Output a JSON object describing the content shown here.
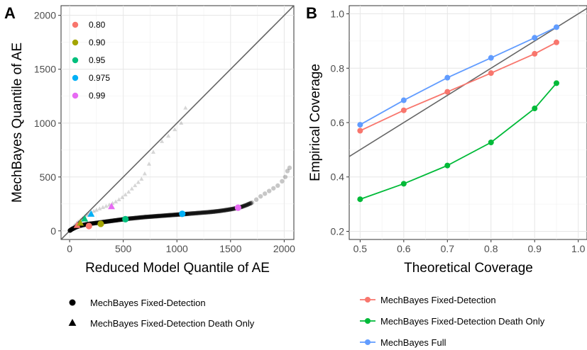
{
  "chart_data": [
    {
      "panel": "A",
      "type": "scatter",
      "xlabel": "Reduced Model Quantile of AE",
      "ylabel": "MechBayes Quantile of AE",
      "xlim": [
        -80,
        2090
      ],
      "ylim": [
        -80,
        2090
      ],
      "xticks": [
        0,
        500,
        1000,
        1500,
        2000
      ],
      "yticks": [
        0,
        500,
        1000,
        1500,
        2000
      ],
      "grid": true,
      "reference_line": "y = x",
      "quantile_legend": {
        "placement": "top-left",
        "items": [
          {
            "label": "0.80",
            "color": "#F8766D"
          },
          {
            "label": "0.90",
            "color": "#A3A500"
          },
          {
            "label": "0.95",
            "color": "#00BF7D"
          },
          {
            "label": "0.975",
            "color": "#00B0F6"
          },
          {
            "label": "0.99",
            "color": "#E76BF3"
          }
        ]
      },
      "series": [
        {
          "name": "MechBayes Fixed-Detection",
          "marker": "circle",
          "points": [
            [
              2,
              2
            ],
            [
              10,
              8
            ],
            [
              20,
              15
            ],
            [
              30,
              20
            ],
            [
              40,
              25
            ],
            [
              55,
              32
            ],
            [
              70,
              38
            ],
            [
              85,
              43
            ],
            [
              100,
              48
            ],
            [
              120,
              53
            ],
            [
              140,
              57
            ],
            [
              160,
              61
            ],
            [
              180,
              64
            ],
            [
              200,
              67
            ],
            [
              230,
              71
            ],
            [
              260,
              75
            ],
            [
              290,
              79
            ],
            [
              320,
              83
            ],
            [
              350,
              87
            ],
            [
              380,
              91
            ],
            [
              410,
              95
            ],
            [
              440,
              99
            ],
            [
              470,
              103
            ],
            [
              500,
              107
            ],
            [
              540,
              112
            ],
            [
              580,
              116
            ],
            [
              620,
              120
            ],
            [
              660,
              124
            ],
            [
              700,
              128
            ],
            [
              740,
              131
            ],
            [
              780,
              134
            ],
            [
              820,
              137
            ],
            [
              860,
              140
            ],
            [
              900,
              143
            ],
            [
              940,
              146
            ],
            [
              980,
              149
            ],
            [
              1020,
              152
            ],
            [
              1060,
              155
            ],
            [
              1100,
              158
            ],
            [
              1150,
              162
            ],
            [
              1200,
              166
            ],
            [
              1250,
              170
            ],
            [
              1300,
              174
            ],
            [
              1350,
              179
            ],
            [
              1400,
              185
            ],
            [
              1450,
              192
            ],
            [
              1500,
              200
            ],
            [
              1550,
              210
            ],
            [
              1600,
              222
            ],
            [
              1650,
              240
            ],
            [
              1700,
              262
            ],
            [
              1740,
              290
            ],
            [
              1780,
              320
            ],
            [
              1820,
              345
            ],
            [
              1860,
              370
            ],
            [
              1900,
              395
            ],
            [
              1940,
              420
            ],
            [
              1980,
              460
            ],
            [
              2010,
              500
            ],
            [
              2030,
              555
            ],
            [
              2050,
              585
            ]
          ],
          "quantile_points": [
            [
              180,
              45
            ],
            [
              290,
              65
            ],
            [
              520,
              108
            ],
            [
              1050,
              158
            ],
            [
              1570,
              215
            ]
          ]
        },
        {
          "name": "MechBayes Fixed-Detection Death Only",
          "marker": "triangle",
          "points": [
            [
              5,
              8
            ],
            [
              20,
              25
            ],
            [
              35,
              40
            ],
            [
              50,
              55
            ],
            [
              65,
              70
            ],
            [
              80,
              85
            ],
            [
              100,
              100
            ],
            [
              120,
              115
            ],
            [
              140,
              130
            ],
            [
              160,
              145
            ],
            [
              180,
              158
            ],
            [
              200,
              170
            ],
            [
              225,
              182
            ],
            [
              250,
              193
            ],
            [
              280,
              205
            ],
            [
              310,
              217
            ],
            [
              340,
              228
            ],
            [
              370,
              240
            ],
            [
              400,
              255
            ],
            [
              430,
              270
            ],
            [
              460,
              290
            ],
            [
              490,
              310
            ],
            [
              520,
              335
            ],
            [
              550,
              360
            ],
            [
              580,
              390
            ],
            [
              610,
              420
            ],
            [
              640,
              450
            ],
            [
              670,
              480
            ],
            [
              700,
              530
            ],
            [
              740,
              620
            ],
            [
              780,
              730
            ],
            [
              860,
              830
            ],
            [
              920,
              880
            ],
            [
              980,
              940
            ],
            [
              1040,
              1000
            ],
            [
              1080,
              1140
            ]
          ],
          "quantile_points": [
            [
              70,
              50
            ],
            [
              100,
              72
            ],
            [
              140,
              110
            ],
            [
              200,
              155
            ],
            [
              390,
              225
            ]
          ]
        }
      ]
    },
    {
      "panel": "B",
      "type": "line",
      "xlabel": "Theoretical Coverage",
      "ylabel": "Empirical Coverage",
      "xlim": [
        0.475,
        1.02
      ],
      "ylim": [
        0.17,
        1.03
      ],
      "xticks": [
        "0.5",
        "0.6",
        "0.7",
        "0.8",
        "0.9",
        "1.0"
      ],
      "yticks": [
        "0.2",
        "0.4",
        "0.6",
        "0.8",
        "1.0"
      ],
      "grid": true,
      "reference_line": "y = x",
      "x": [
        0.5,
        0.6,
        0.7,
        0.8,
        0.9,
        0.95
      ],
      "series": [
        {
          "name": "MechBayes Fixed-Detection",
          "color": "#F8766D",
          "values": [
            0.57,
            0.645,
            0.713,
            0.782,
            0.853,
            0.895
          ]
        },
        {
          "name": "MechBayes Fixed-Detection Death Only",
          "color": "#00BA38",
          "values": [
            0.318,
            0.375,
            0.442,
            0.527,
            0.652,
            0.745
          ]
        },
        {
          "name": "MechBayes Full",
          "color": "#619CFF",
          "values": [
            0.592,
            0.682,
            0.765,
            0.838,
            0.912,
            0.951
          ]
        }
      ]
    }
  ],
  "figure": {
    "panel_a_letter": "A",
    "panel_b_letter": "B"
  }
}
